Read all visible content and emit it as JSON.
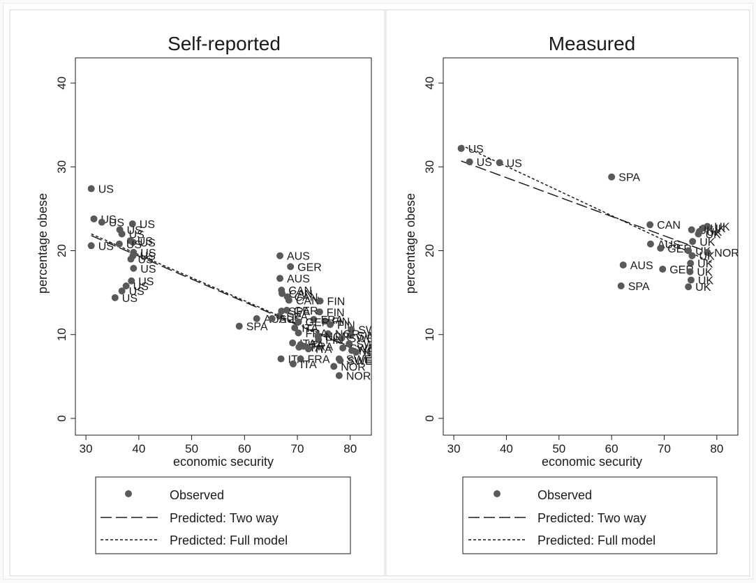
{
  "legend": {
    "observed_label": "Observed",
    "two_way_label": "Predicted: Two way",
    "full_label": "Predicted: Full model"
  },
  "colors": {
    "marker": "#595959",
    "line": "#1a1a1a",
    "frame": "#d9d9d9"
  },
  "chart_data": [
    {
      "type": "scatter",
      "title": "Self-reported",
      "xlabel": "economic security",
      "ylabel": "percentage obese",
      "xlim": [
        28,
        84
      ],
      "ylim": [
        -2,
        43
      ],
      "xticks": [
        30,
        40,
        50,
        60,
        70,
        80
      ],
      "yticks": [
        0,
        10,
        20,
        30,
        40
      ],
      "grid": false,
      "legend_placement": "bottom",
      "points": [
        {
          "label": "US",
          "x": 31,
          "y": 27.4
        },
        {
          "label": "US",
          "x": 31.5,
          "y": 23.8
        },
        {
          "label": "US",
          "x": 33,
          "y": 23.4
        },
        {
          "label": "US",
          "x": 38.8,
          "y": 23.2
        },
        {
          "label": "US",
          "x": 36.4,
          "y": 22.5
        },
        {
          "label": "US",
          "x": 36.8,
          "y": 22
        },
        {
          "label": "US",
          "x": 38.4,
          "y": 21.2
        },
        {
          "label": "US",
          "x": 38.9,
          "y": 21
        },
        {
          "label": "US",
          "x": 36.3,
          "y": 20.8
        },
        {
          "label": "US",
          "x": 31,
          "y": 20.6
        },
        {
          "label": "US",
          "x": 39,
          "y": 19.8
        },
        {
          "label": "US",
          "x": 38.9,
          "y": 19.4
        },
        {
          "label": "US",
          "x": 38.5,
          "y": 19
        },
        {
          "label": "US",
          "x": 39,
          "y": 17.9
        },
        {
          "label": "US",
          "x": 38.6,
          "y": 16.4
        },
        {
          "label": "US",
          "x": 37.6,
          "y": 15.8
        },
        {
          "label": "US",
          "x": 36.8,
          "y": 15.2
        },
        {
          "label": "US",
          "x": 35.5,
          "y": 14.4
        },
        {
          "label": "AUS",
          "x": 66.7,
          "y": 19.4
        },
        {
          "label": "GER",
          "x": 68.7,
          "y": 18.1
        },
        {
          "label": "AUS",
          "x": 66.7,
          "y": 16.7
        },
        {
          "label": "CAN",
          "x": 67,
          "y": 15.3
        },
        {
          "label": "CAN",
          "x": 67.1,
          "y": 14.9
        },
        {
          "label": "CAN",
          "x": 68.1,
          "y": 14.5
        },
        {
          "label": "CAN",
          "x": 68.4,
          "y": 14.1
        },
        {
          "label": "FIN",
          "x": 74.3,
          "y": 14
        },
        {
          "label": "GER",
          "x": 68,
          "y": 12.9
        },
        {
          "label": "SPA",
          "x": 67,
          "y": 12.8
        },
        {
          "label": "FIN",
          "x": 74.2,
          "y": 12.7
        },
        {
          "label": "SPA",
          "x": 66.6,
          "y": 12.2
        },
        {
          "label": "AUS",
          "x": 62.3,
          "y": 11.9
        },
        {
          "label": "AUS",
          "x": 65.2,
          "y": 11.9
        },
        {
          "label": "FRA",
          "x": 73.1,
          "y": 11.8
        },
        {
          "label": "FIN",
          "x": 75.2,
          "y": 11.6
        },
        {
          "label": "GER",
          "x": 70.2,
          "y": 11.5
        },
        {
          "label": "FIN",
          "x": 76.2,
          "y": 11.2
        },
        {
          "label": "SPA",
          "x": 59,
          "y": 11
        },
        {
          "label": "ITA",
          "x": 69.5,
          "y": 10.8
        },
        {
          "label": "SWE",
          "x": 80.2,
          "y": 10.6
        },
        {
          "label": "FRA",
          "x": 70.2,
          "y": 10.2
        },
        {
          "label": "NOR",
          "x": 75.8,
          "y": 10.1
        },
        {
          "label": "SWE",
          "x": 80,
          "y": 9.9
        },
        {
          "label": "NOR",
          "x": 73.9,
          "y": 9.8
        },
        {
          "label": "SWE",
          "x": 78.4,
          "y": 9.6
        },
        {
          "label": "FIN",
          "x": 74,
          "y": 9.4
        },
        {
          "label": "ITA",
          "x": 69.1,
          "y": 9
        },
        {
          "label": "SWE",
          "x": 79.8,
          "y": 8.9
        },
        {
          "label": "ITA",
          "x": 70.6,
          "y": 8.8
        },
        {
          "label": "FRA",
          "x": 71.2,
          "y": 8.6
        },
        {
          "label": "ITA",
          "x": 70.3,
          "y": 8.5
        },
        {
          "label": "SWE",
          "x": 78.6,
          "y": 8.4
        },
        {
          "label": "ITA",
          "x": 72.1,
          "y": 8.3
        },
        {
          "label": "NOR",
          "x": 80.3,
          "y": 8.1
        },
        {
          "label": "NOR",
          "x": 81.1,
          "y": 7.9
        },
        {
          "label": "SWE",
          "x": 77.9,
          "y": 7.1
        },
        {
          "label": "ITA",
          "x": 66.9,
          "y": 7.1
        },
        {
          "label": "FRA",
          "x": 70.6,
          "y": 7.1
        },
        {
          "label": "SWE",
          "x": 78.1,
          "y": 6.9
        },
        {
          "label": "ITA",
          "x": 69.2,
          "y": 6.5
        },
        {
          "label": "NOR",
          "x": 76.9,
          "y": 6.2
        },
        {
          "label": "NOR",
          "x": 77.9,
          "y": 5.1
        }
      ],
      "lines": [
        {
          "name": "Predicted: Two way",
          "style": "long-dash",
          "x": [
            31,
            80.5
          ],
          "y": [
            21.8,
            8.3
          ]
        },
        {
          "name": "Predicted: Full model",
          "style": "short-dash",
          "x": [
            31,
            80.5
          ],
          "y": [
            22,
            8.4
          ]
        }
      ]
    },
    {
      "type": "scatter",
      "title": "Measured",
      "xlabel": "economic security",
      "ylabel": "percentage obese",
      "xlim": [
        28,
        84
      ],
      "ylim": [
        -2,
        43
      ],
      "xticks": [
        30,
        40,
        50,
        60,
        70,
        80
      ],
      "yticks": [
        0,
        10,
        20,
        30,
        40
      ],
      "grid": false,
      "legend_placement": "bottom",
      "points": [
        {
          "label": "US",
          "x": 31.4,
          "y": 32.2
        },
        {
          "label": "US",
          "x": 33,
          "y": 30.6
        },
        {
          "label": "US",
          "x": 38.7,
          "y": 30.5
        },
        {
          "label": "SPA",
          "x": 60,
          "y": 28.8
        },
        {
          "label": "CAN",
          "x": 67.3,
          "y": 23.1
        },
        {
          "label": "UK",
          "x": 78.2,
          "y": 22.9
        },
        {
          "label": "UK",
          "x": 77.4,
          "y": 22.7
        },
        {
          "label": "UK",
          "x": 75.2,
          "y": 22.5
        },
        {
          "label": "UK",
          "x": 76.7,
          "y": 22.3
        },
        {
          "label": "UK",
          "x": 76.5,
          "y": 22
        },
        {
          "label": "UK",
          "x": 75.4,
          "y": 21.1
        },
        {
          "label": "AUS",
          "x": 67.4,
          "y": 20.8
        },
        {
          "label": "GER",
          "x": 69.3,
          "y": 20.3
        },
        {
          "label": "UK",
          "x": 74.6,
          "y": 20
        },
        {
          "label": "NOR",
          "x": 78.2,
          "y": 19.8
        },
        {
          "label": "UK",
          "x": 75.3,
          "y": 19.4
        },
        {
          "label": "UK",
          "x": 75,
          "y": 18.5
        },
        {
          "label": "AUS",
          "x": 62.2,
          "y": 18.3
        },
        {
          "label": "GER",
          "x": 69.7,
          "y": 17.8
        },
        {
          "label": "UK",
          "x": 74.9,
          "y": 17.5
        },
        {
          "label": "UK",
          "x": 75.1,
          "y": 16.5
        },
        {
          "label": "SPA",
          "x": 61.8,
          "y": 15.8
        },
        {
          "label": "UK",
          "x": 74.6,
          "y": 15.7
        }
      ],
      "lines": [
        {
          "name": "Predicted: Two way",
          "style": "long-dash",
          "x": [
            31.4,
            79
          ],
          "y": [
            30.7,
            19.7
          ]
        },
        {
          "name": "Predicted: Full model",
          "style": "short-dash",
          "x": [
            31.4,
            79
          ],
          "y": [
            32.6,
            18.6
          ]
        }
      ]
    }
  ]
}
